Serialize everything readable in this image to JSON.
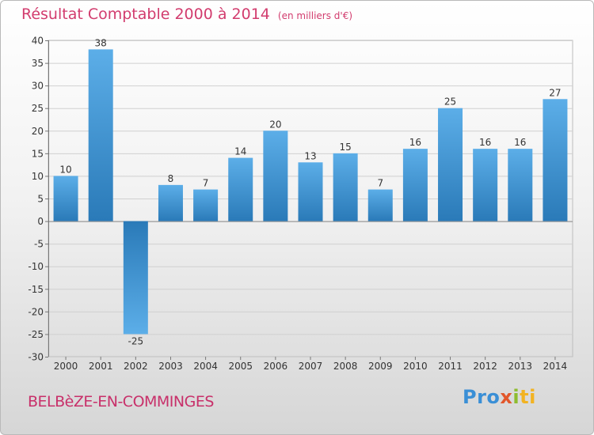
{
  "chart_data": {
    "type": "bar",
    "title": "Résultat Comptable 2000 à 2014",
    "subtitle": "(en milliers d'€)",
    "categories": [
      "2000",
      "2001",
      "2002",
      "2003",
      "2004",
      "2005",
      "2006",
      "2007",
      "2008",
      "2009",
      "2010",
      "2011",
      "2012",
      "2013",
      "2014"
    ],
    "values": [
      10,
      38,
      -25,
      8,
      7,
      14,
      20,
      13,
      15,
      7,
      16,
      25,
      16,
      16,
      27
    ],
    "ylim": [
      -30,
      40
    ],
    "yticks": [
      40,
      35,
      30,
      25,
      20,
      15,
      10,
      5,
      0,
      -5,
      -10,
      -15,
      -20,
      -25,
      -30
    ],
    "grid": true,
    "bar_color_light": "#5caee8",
    "bar_color_dark": "#2a7ab8"
  },
  "footer": {
    "commune": "BELBèZE-EN-COMMINGES",
    "logo_parts": [
      "Pro",
      "x",
      "i",
      "ti"
    ]
  }
}
